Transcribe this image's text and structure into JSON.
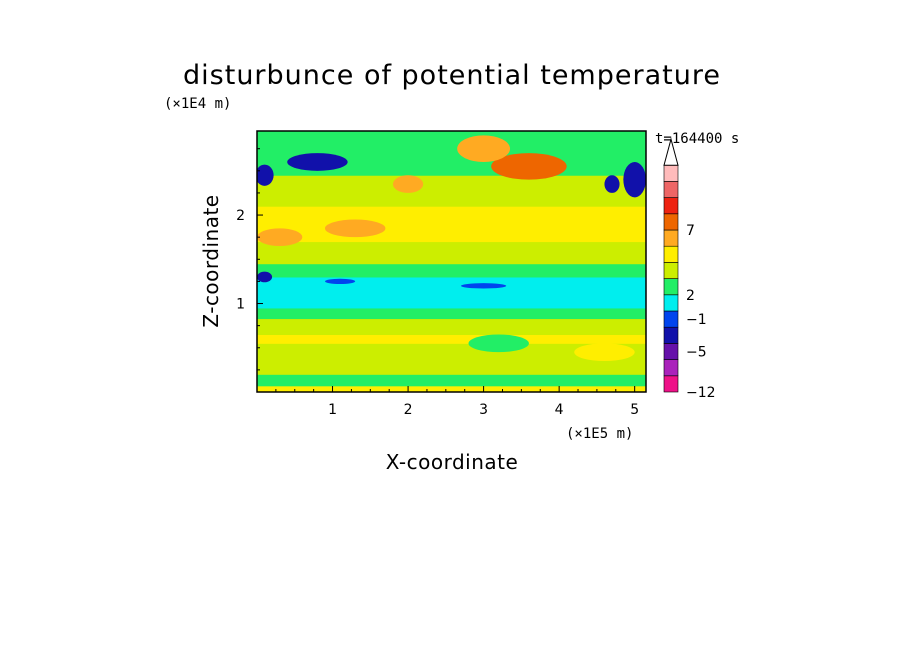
{
  "chart_data": {
    "type": "heatmap",
    "title": "disturbunce of potential temperature",
    "xlabel": "X-coordinate",
    "ylabel": "Z-coordinate",
    "x_unit": "(×1E5 m)",
    "y_unit": "(×1E4 m)",
    "time_label": "t=164400 s",
    "xlim": [
      0,
      5.15
    ],
    "ylim": [
      0,
      2.95
    ],
    "x_ticks": [
      "1",
      "2",
      "3",
      "4",
      "5"
    ],
    "y_ticks": [
      "1",
      "2"
    ],
    "colorbar": {
      "labels": [
        "7",
        "2",
        "−1",
        "−5",
        "−12"
      ],
      "colors": [
        "#ee1188",
        "#aa22bb",
        "#6611aa",
        "#1111aa",
        "#0044ee",
        "#00eeee",
        "#22ee66",
        "#ccee00",
        "#ffee00",
        "#ffaa22",
        "#ee6600",
        "#ee2211",
        "#ee6666",
        "#ffbbbb"
      ]
    },
    "bands": [
      {
        "z": [
          0.0,
          0.07
        ],
        "level": 8
      },
      {
        "z": [
          0.07,
          0.2
        ],
        "level": 6
      },
      {
        "z": [
          0.2,
          0.55
        ],
        "level": 7
      },
      {
        "z": [
          0.55,
          0.65
        ],
        "level": 8
      },
      {
        "z": [
          0.65,
          0.83
        ],
        "level": 7
      },
      {
        "z": [
          0.83,
          0.95
        ],
        "level": 6
      },
      {
        "z": [
          0.95,
          1.3
        ],
        "level": 5
      },
      {
        "z": [
          1.3,
          1.45
        ],
        "level": 6
      },
      {
        "z": [
          1.45,
          1.7
        ],
        "level": 7
      },
      {
        "z": [
          1.7,
          2.1
        ],
        "level": 8
      },
      {
        "z": [
          2.1,
          2.45
        ],
        "level": 7
      },
      {
        "z": [
          2.45,
          2.95
        ],
        "level": 6
      }
    ],
    "patches": [
      {
        "x": 0.3,
        "z": 1.75,
        "rx": 0.3,
        "rz": 0.1,
        "level": 9
      },
      {
        "x": 1.3,
        "z": 1.85,
        "rx": 0.4,
        "rz": 0.1,
        "level": 9
      },
      {
        "x": 3.6,
        "z": 2.55,
        "rx": 0.5,
        "rz": 0.15,
        "level": 10
      },
      {
        "x": 3.0,
        "z": 2.75,
        "rx": 0.35,
        "rz": 0.15,
        "level": 9
      },
      {
        "x": 2.0,
        "z": 2.35,
        "rx": 0.2,
        "rz": 0.1,
        "level": 9
      },
      {
        "x": 0.8,
        "z": 2.6,
        "rx": 0.4,
        "rz": 0.1,
        "level": 3
      },
      {
        "x": 0.1,
        "z": 2.45,
        "rx": 0.12,
        "rz": 0.12,
        "level": 3
      },
      {
        "x": 5.0,
        "z": 2.4,
        "rx": 0.15,
        "rz": 0.2,
        "level": 3
      },
      {
        "x": 4.7,
        "z": 2.35,
        "rx": 0.1,
        "rz": 0.1,
        "level": 3
      },
      {
        "x": 0.1,
        "z": 1.3,
        "rx": 0.1,
        "rz": 0.06,
        "level": 3
      },
      {
        "x": 1.1,
        "z": 1.25,
        "rx": 0.2,
        "rz": 0.03,
        "level": 4
      },
      {
        "x": 3.0,
        "z": 1.2,
        "rx": 0.3,
        "rz": 0.03,
        "level": 4
      },
      {
        "x": 3.2,
        "z": 0.55,
        "rx": 0.4,
        "rz": 0.1,
        "level": 6
      },
      {
        "x": 4.6,
        "z": 0.45,
        "rx": 0.4,
        "rz": 0.1,
        "level": 8
      }
    ]
  }
}
